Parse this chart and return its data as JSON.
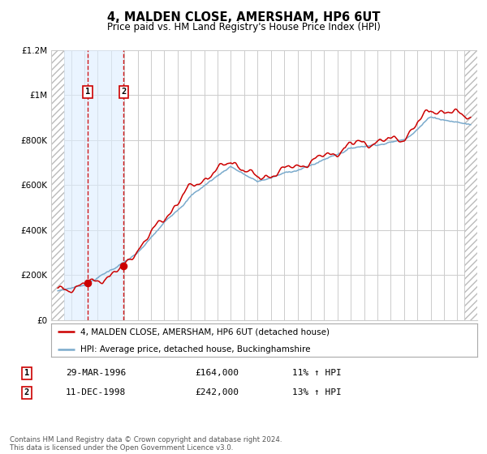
{
  "title": "4, MALDEN CLOSE, AMERSHAM, HP6 6UT",
  "subtitle": "Price paid vs. HM Land Registry's House Price Index (HPI)",
  "legend_label_red": "4, MALDEN CLOSE, AMERSHAM, HP6 6UT (detached house)",
  "legend_label_blue": "HPI: Average price, detached house, Buckinghamshire",
  "footer": "Contains HM Land Registry data © Crown copyright and database right 2024.\nThis data is licensed under the Open Government Licence v3.0.",
  "sale1_date": "29-MAR-1996",
  "sale1_price": "£164,000",
  "sale1_hpi": "11% ↑ HPI",
  "sale2_date": "11-DEC-1998",
  "sale2_price": "£242,000",
  "sale2_hpi": "13% ↑ HPI",
  "sale1_year": 1996.25,
  "sale1_value": 164000,
  "sale2_year": 1998.95,
  "sale2_value": 242000,
  "ylim": [
    0,
    1200000
  ],
  "xlim_start": 1993.5,
  "xlim_end": 2025.5,
  "hatch_left_end": 1994.5,
  "hatch_right_start": 2024.5,
  "shade_start": 1994.5,
  "shade_end": 1998.95,
  "red_color": "#cc0000",
  "blue_color": "#7aaacc",
  "grid_color": "#cccccc",
  "hatch_color": "#bbbbbb",
  "shade_color": "#ddeeff"
}
